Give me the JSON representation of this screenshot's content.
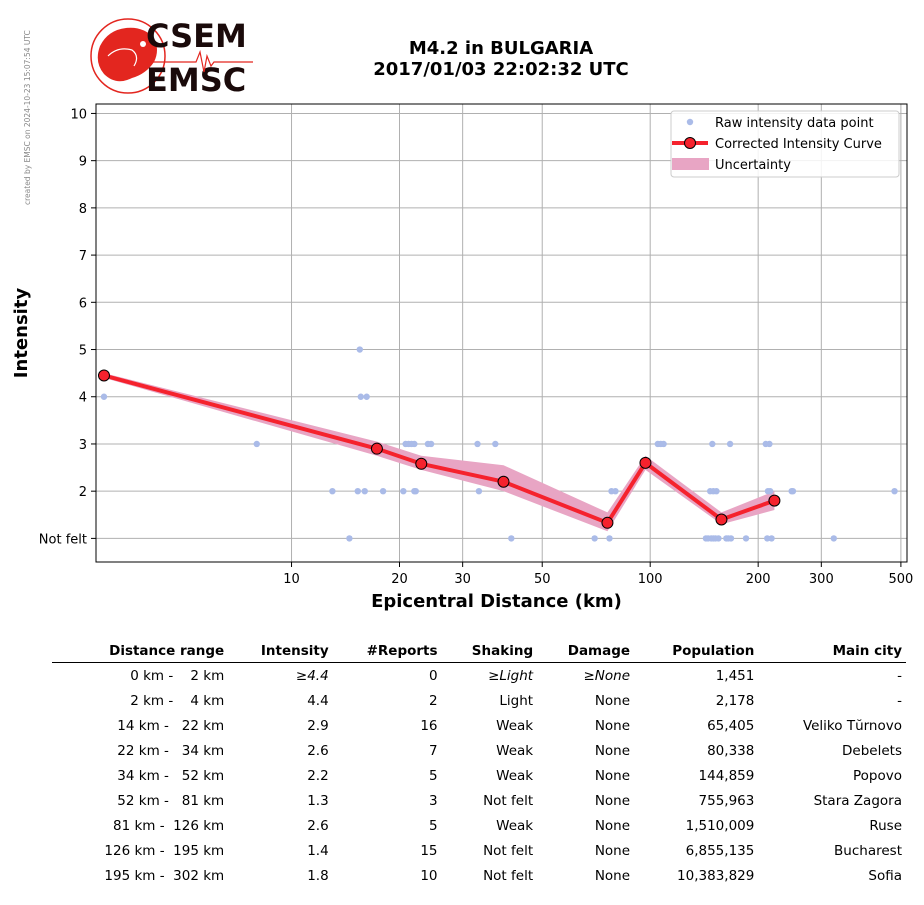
{
  "side_note": "created by EMSC on 2024-10-23 15:07:54 UTC",
  "logo": {
    "line1": "CSEM",
    "line2": "EMSC",
    "accent": "#e3261f"
  },
  "title_line1": "M4.2 in BULGARIA",
  "title_line2": "2017/01/03 22:02:32 UTC",
  "chart_data": {
    "type": "scatter",
    "title": "M4.2 in BULGARIA 2017/01/03 22:02:32 UTC",
    "xlabel": "Epicentral Distance (km)",
    "ylabel": "Intensity",
    "xscale": "log",
    "xlim": [
      2.85,
      520
    ],
    "ylim": [
      0.5,
      10.2
    ],
    "x_ticks": [
      10,
      20,
      30,
      50,
      100,
      200,
      300,
      500
    ],
    "y_ticks": [
      {
        "value": 1,
        "label": "Not felt"
      },
      {
        "value": 2,
        "label": "2"
      },
      {
        "value": 3,
        "label": "3"
      },
      {
        "value": 4,
        "label": "4"
      },
      {
        "value": 5,
        "label": "5"
      },
      {
        "value": 6,
        "label": "6"
      },
      {
        "value": 7,
        "label": "7"
      },
      {
        "value": 8,
        "label": "8"
      },
      {
        "value": 9,
        "label": "9"
      },
      {
        "value": 10,
        "label": "10"
      }
    ],
    "grid": true,
    "legend": "top-right",
    "legend_entries": [
      "Raw intensity data point",
      "Corrected Intensity Curve",
      "Uncertainty"
    ],
    "colors": {
      "raw": "#aabbe8",
      "curve": "#f5222d",
      "uncertainty": "#e8a5c4",
      "grid": "#b0b0b0"
    },
    "raw_points": [
      [
        3,
        4
      ],
      [
        8,
        3
      ],
      [
        13,
        2
      ],
      [
        14.5,
        1
      ],
      [
        15.3,
        2
      ],
      [
        15.5,
        5
      ],
      [
        15.6,
        4
      ],
      [
        16,
        2
      ],
      [
        16.2,
        4
      ],
      [
        18,
        2
      ],
      [
        20.5,
        2
      ],
      [
        20.8,
        3
      ],
      [
        21.2,
        3
      ],
      [
        21.6,
        3
      ],
      [
        22,
        3
      ],
      [
        22,
        2
      ],
      [
        22.2,
        2
      ],
      [
        24,
        3
      ],
      [
        24.5,
        3
      ],
      [
        33,
        3
      ],
      [
        33.3,
        2
      ],
      [
        37,
        3
      ],
      [
        41,
        1
      ],
      [
        70,
        1
      ],
      [
        77,
        1
      ],
      [
        78,
        2
      ],
      [
        80,
        2
      ],
      [
        105,
        3
      ],
      [
        107,
        3
      ],
      [
        109,
        3
      ],
      [
        143,
        1
      ],
      [
        145,
        1
      ],
      [
        147,
        2
      ],
      [
        148,
        1
      ],
      [
        149,
        3
      ],
      [
        150,
        1
      ],
      [
        150,
        2
      ],
      [
        152,
        1
      ],
      [
        153,
        2
      ],
      [
        155,
        1
      ],
      [
        163,
        1
      ],
      [
        165,
        1
      ],
      [
        167,
        3
      ],
      [
        168,
        1
      ],
      [
        185,
        1
      ],
      [
        210,
        3
      ],
      [
        212,
        1
      ],
      [
        213,
        2
      ],
      [
        215,
        3
      ],
      [
        216,
        2
      ],
      [
        218,
        1
      ],
      [
        248,
        2
      ],
      [
        250,
        2
      ],
      [
        325,
        1
      ],
      [
        480,
        2
      ]
    ],
    "curve": [
      [
        3,
        4.45
      ],
      [
        17.3,
        2.9
      ],
      [
        23,
        2.58
      ],
      [
        39,
        2.2
      ],
      [
        76,
        1.33
      ],
      [
        97,
        2.6
      ],
      [
        158,
        1.4
      ],
      [
        222,
        1.8
      ]
    ],
    "uncertainty": [
      [
        3,
        4.4,
        4.5
      ],
      [
        17.3,
        2.75,
        3.05
      ],
      [
        23,
        2.45,
        2.75
      ],
      [
        39,
        2.0,
        2.55
      ],
      [
        76,
        1.15,
        1.55
      ],
      [
        97,
        2.45,
        2.75
      ],
      [
        158,
        1.3,
        1.55
      ],
      [
        222,
        1.6,
        2.0
      ]
    ]
  },
  "table": {
    "headers": [
      "Distance range",
      "Intensity",
      "#Reports",
      "Shaking",
      "Damage",
      "Population",
      "Main city"
    ],
    "rows": [
      [
        "  0 km -    2 km",
        "≥4.4",
        "0",
        "≥Light",
        "≥None",
        "1,451",
        "-"
      ],
      [
        "  2 km -    4 km",
        "4.4",
        "2",
        "Light",
        "None",
        "2,178",
        "-"
      ],
      [
        " 14 km -   22 km",
        "2.9",
        "16",
        "Weak",
        "None",
        "65,405",
        "Veliko Tŭrnovo"
      ],
      [
        " 22 km -   34 km",
        "2.6",
        "7",
        "Weak",
        "None",
        "80,338",
        "Debelets"
      ],
      [
        " 34 km -   52 km",
        "2.2",
        "5",
        "Weak",
        "None",
        "144,859",
        "Popovo"
      ],
      [
        " 52 km -   81 km",
        "1.3",
        "3",
        "Not felt",
        "None",
        "755,963",
        "Stara Zagora"
      ],
      [
        " 81 km -  126 km",
        "2.6",
        "5",
        "Weak",
        "None",
        "1,510,009",
        "Ruse"
      ],
      [
        "126 km -  195 km",
        "1.4",
        "15",
        "Not felt",
        "None",
        "6,855,135",
        "Bucharest"
      ],
      [
        "195 km -  302 km",
        "1.8",
        "10",
        "Not felt",
        "None",
        "10,383,829",
        "Sofia"
      ]
    ]
  }
}
